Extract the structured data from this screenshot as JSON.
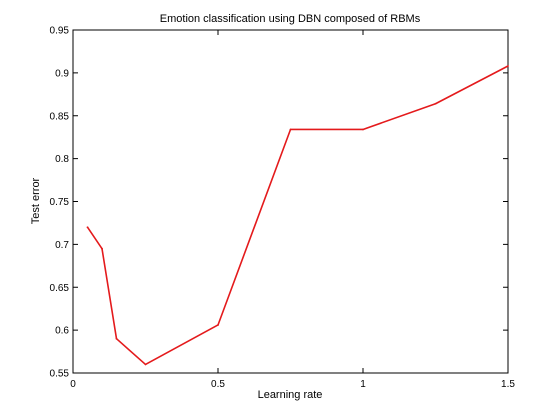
{
  "chart_data": {
    "type": "line",
    "title": "Emotion classification using DBN composed of RBMs",
    "xlabel": "Learning rate",
    "ylabel": "Test error",
    "xlim": [
      0,
      1.5
    ],
    "ylim": [
      0.55,
      0.95
    ],
    "x_ticks": [
      "0",
      "0.5",
      "1",
      "1.5"
    ],
    "y_ticks": [
      "0.55",
      "0.6",
      "0.65",
      "0.7",
      "0.75",
      "0.8",
      "0.85",
      "0.9",
      "0.95"
    ],
    "grid": false,
    "legend": "none",
    "series": [
      {
        "color": "#e41a1c",
        "points": [
          {
            "x": 0.05,
            "y": 0.72
          },
          {
            "x": 0.1,
            "y": 0.695
          },
          {
            "x": 0.15,
            "y": 0.59
          },
          {
            "x": 0.25,
            "y": 0.56
          },
          {
            "x": 0.5,
            "y": 0.606
          },
          {
            "x": 0.75,
            "y": 0.834
          },
          {
            "x": 1.0,
            "y": 0.834
          },
          {
            "x": 1.25,
            "y": 0.864
          },
          {
            "x": 1.5,
            "y": 0.908
          }
        ]
      }
    ]
  }
}
